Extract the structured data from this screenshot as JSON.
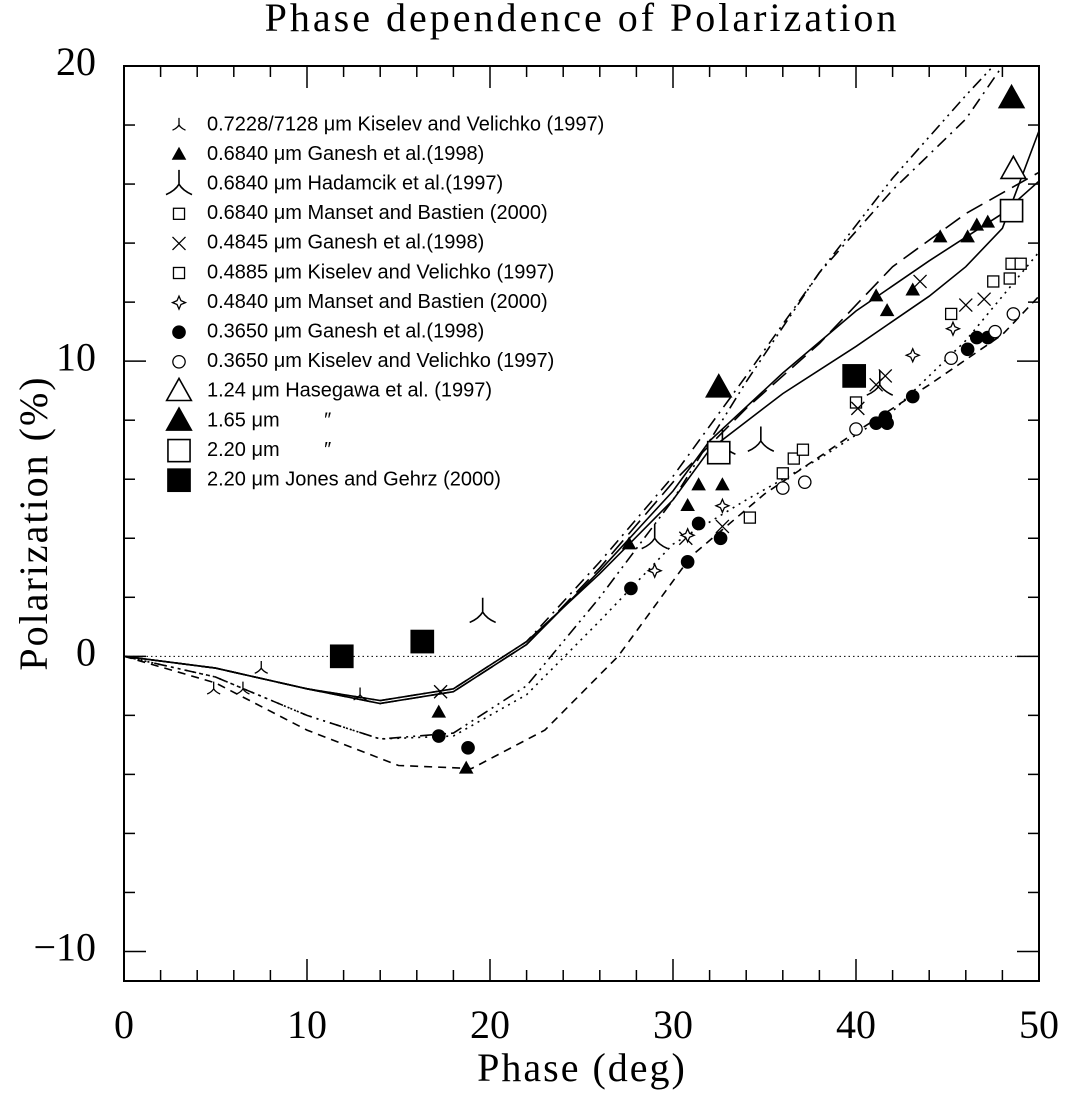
{
  "chart_data": {
    "type": "scatter",
    "title": "Phase dependence of Polarization",
    "xlabel": "Phase (deg)",
    "ylabel": "Polarization (%)",
    "xlim": [
      0,
      50
    ],
    "ylim": [
      -11,
      20
    ],
    "xticks": [
      0,
      10,
      20,
      30,
      40,
      50
    ],
    "yticks": [
      {
        "value": -10,
        "label": "−10"
      },
      0,
      10,
      20
    ],
    "xminorticks": [
      2,
      4,
      6,
      8,
      12,
      14,
      16,
      18,
      22,
      24,
      26,
      28,
      32,
      34,
      36,
      38,
      42,
      44,
      46,
      48
    ],
    "yminorticks": [
      -8,
      -6,
      -4,
      -2,
      2,
      4,
      6,
      8,
      12,
      14,
      16,
      18
    ],
    "reference_line": 0,
    "series": [
      {
        "name": "0.7228/7128 μm Kiselev and Velichko (1997)",
        "marker": "tripod",
        "filled": false,
        "size": "small",
        "color": "#000000",
        "x": [
          4.9,
          6.5,
          7.5,
          12.9
        ],
        "y": [
          -1.1,
          -1.1,
          -0.4,
          -1.3
        ]
      },
      {
        "name": "0.6840 μm Ganesh et al.(1998)",
        "marker": "triangle",
        "filled": true,
        "size": "small",
        "color": "#000000",
        "x": [
          17.2,
          18.7,
          27.6,
          30.8,
          31.4,
          32.7,
          41.1,
          41.7,
          43.1,
          44.6,
          46.1,
          46.6,
          47.2
        ],
        "y": [
          -1.9,
          -3.8,
          3.8,
          5.1,
          5.8,
          5.8,
          12.2,
          11.7,
          12.4,
          14.2,
          14.2,
          14.6,
          14.7
        ]
      },
      {
        "name": "0.6840 μm Hadamcik et al.(1997)",
        "marker": "tripod",
        "filled": false,
        "size": "large",
        "color": "#000000",
        "x": [
          19.6,
          29.0,
          32.7,
          34.8,
          41.3
        ],
        "y": [
          1.5,
          4.0,
          7.2,
          7.3,
          9.2
        ]
      },
      {
        "name": "0.6840 μm Manset and Bastien (2000)",
        "marker": "square",
        "filled": false,
        "size": "small",
        "color": "#000000",
        "x": [
          34.2,
          36.0,
          36.6,
          37.1,
          40.0,
          45.2,
          47.5
        ],
        "y": [
          4.7,
          6.2,
          6.7,
          7.0,
          8.6,
          11.6,
          12.7
        ]
      },
      {
        "name": "0.4845 μm Ganesh et al.(1998)",
        "marker": "cross",
        "filled": false,
        "size": "small",
        "color": "#000000",
        "x": [
          17.3,
          30.7,
          32.7,
          40.1,
          41.1,
          41.6,
          43.5,
          46.0,
          47.0
        ],
        "y": [
          -1.2,
          4.0,
          4.4,
          8.4,
          9.2,
          9.5,
          12.7,
          11.9,
          12.1
        ]
      },
      {
        "name": "0.4885 μm Kiselev and Velichko (1997)",
        "marker": "square",
        "filled": false,
        "size": "small",
        "color": "#000000",
        "x": [
          48.4,
          48.5,
          49.0
        ],
        "y": [
          12.8,
          13.3,
          13.3
        ]
      },
      {
        "name": "0.4840 μm Manset and Bastien (2000)",
        "marker": "star",
        "filled": false,
        "size": "small",
        "color": "#000000",
        "x": [
          29.0,
          30.8,
          32.7,
          43.1,
          45.3
        ],
        "y": [
          2.9,
          4.1,
          5.1,
          10.2,
          11.1
        ]
      },
      {
        "name": "0.3650 μm Ganesh et al.(1998)",
        "marker": "circle",
        "filled": true,
        "size": "small",
        "color": "#000000",
        "x": [
          17.2,
          18.8,
          27.7,
          30.8,
          31.4,
          32.6,
          41.1,
          41.7,
          41.6,
          43.1,
          46.1,
          46.6,
          47.2
        ],
        "y": [
          -2.7,
          -3.1,
          2.3,
          3.2,
          4.5,
          4.0,
          7.9,
          7.9,
          8.1,
          8.8,
          10.4,
          10.8,
          10.8
        ]
      },
      {
        "name": "0.3650 μm Kiselev and Velichko (1997)",
        "marker": "circle",
        "filled": false,
        "size": "small",
        "color": "#000000",
        "x": [
          36.0,
          37.2,
          40.0,
          45.2,
          47.6,
          48.6
        ],
        "y": [
          5.7,
          5.9,
          7.7,
          10.1,
          11.0,
          11.6
        ]
      },
      {
        "name": "1.24 μm Hasegawa et al. (1997)",
        "marker": "triangle",
        "filled": false,
        "size": "large",
        "color": "#000000",
        "x": [
          48.6
        ],
        "y": [
          16.5
        ]
      },
      {
        "name": "1.65 μm        ″",
        "marker": "triangle",
        "filled": true,
        "size": "large",
        "color": "#000000",
        "x": [
          32.5,
          48.5
        ],
        "y": [
          9.1,
          18.9
        ]
      },
      {
        "name": "2.20 μm        ″",
        "marker": "square",
        "filled": false,
        "size": "large",
        "color": "#000000",
        "x": [
          32.5,
          48.5
        ],
        "y": [
          6.9,
          15.1
        ]
      },
      {
        "name": "2.20 μm Jones and Gehrz (2000)",
        "marker": "square",
        "filled": true,
        "size": "large",
        "color": "#000000",
        "x": [
          11.9,
          16.3,
          39.9
        ],
        "y": [
          0.0,
          0.5,
          9.5
        ]
      }
    ],
    "curves": [
      {
        "style": "solid",
        "x": [
          0,
          5,
          10,
          14,
          18,
          22,
          26,
          30,
          32,
          36,
          40,
          44,
          46,
          48,
          50
        ],
        "y": [
          0,
          -0.4,
          -1.1,
          -1.5,
          -1.1,
          0.5,
          2.8,
          5.3,
          7.0,
          8.9,
          10.5,
          12.2,
          13.2,
          14.5,
          17.8
        ]
      },
      {
        "style": "solid",
        "x": [
          0,
          5,
          10,
          14,
          18,
          22,
          26,
          30,
          32,
          36,
          40,
          44,
          48,
          50
        ],
        "y": [
          0,
          -0.4,
          -1.1,
          -1.6,
          -1.2,
          0.4,
          2.9,
          5.6,
          7.3,
          9.6,
          11.7,
          13.4,
          15.0,
          16.1
        ]
      },
      {
        "style": "dash-dot",
        "x": [
          0,
          5,
          10,
          14,
          18,
          22,
          26,
          30,
          34,
          38,
          42,
          46,
          48
        ],
        "y": [
          0,
          -0.4,
          -1.1,
          -1.5,
          -1.1,
          0.5,
          3.2,
          6.1,
          9.5,
          13.0,
          15.8,
          18.2,
          20.0
        ]
      },
      {
        "style": "dash-dot-dot",
        "x": [
          0,
          5,
          10,
          14,
          18,
          22,
          26,
          30,
          34,
          38,
          42,
          46,
          47.5
        ],
        "y": [
          0,
          -0.7,
          -2.0,
          -2.8,
          -2.6,
          -1.0,
          2.0,
          5.3,
          9.3,
          13.0,
          16.2,
          19.0,
          20.0
        ]
      },
      {
        "style": "long-dash",
        "x": [
          0,
          5,
          10,
          14,
          18,
          22,
          26,
          30,
          34,
          38,
          42,
          46,
          50
        ],
        "y": [
          0,
          -0.4,
          -1.1,
          -1.6,
          -1.2,
          0.4,
          3.0,
          5.9,
          8.4,
          10.6,
          13.2,
          15.0,
          16.4
        ]
      },
      {
        "style": "dash",
        "x": [
          0,
          5,
          10,
          15,
          19,
          23,
          27,
          31,
          35,
          40,
          44,
          48,
          50
        ],
        "y": [
          0,
          -0.9,
          -2.5,
          -3.7,
          -3.8,
          -2.5,
          0.0,
          3.4,
          5.5,
          7.6,
          9.2,
          10.9,
          12.2
        ]
      },
      {
        "style": "dotted",
        "x": [
          0,
          5,
          10,
          14,
          18,
          22,
          26,
          30,
          34,
          38,
          42,
          46,
          50
        ],
        "y": [
          0,
          -0.7,
          -2.0,
          -2.8,
          -2.7,
          -1.3,
          1.2,
          3.8,
          5.3,
          6.7,
          8.3,
          10.7,
          13.7
        ]
      }
    ]
  }
}
